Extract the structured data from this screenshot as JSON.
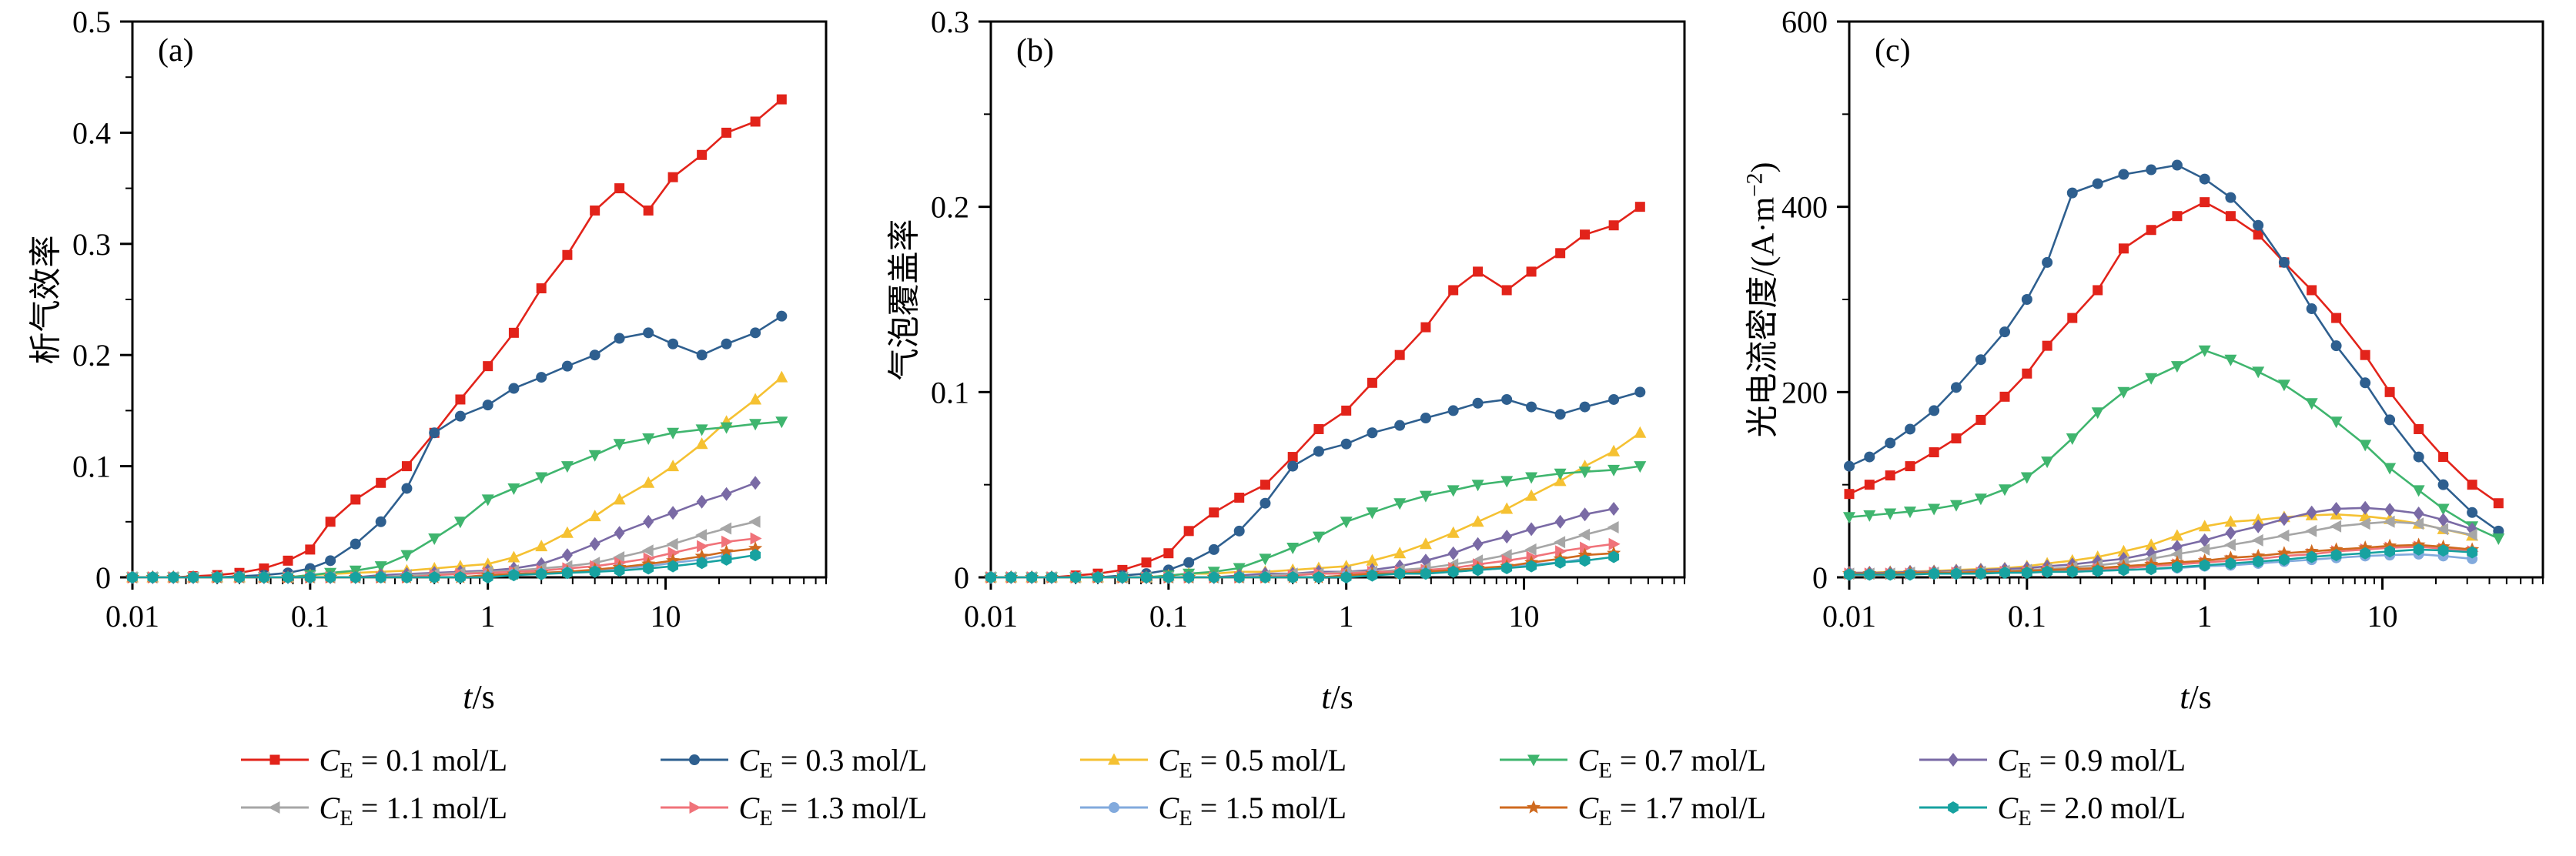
{
  "chart_data": {
    "type": "scatter",
    "x_scale": "log",
    "x_range": [
      0.01,
      80
    ],
    "x_ticks": {
      "values": [
        0.01,
        0.1,
        1,
        10
      ],
      "labels": [
        "0.01",
        "0.1",
        "1",
        "10"
      ]
    },
    "x_label": {
      "italic": "t",
      "rest": "/s"
    },
    "x": [
      0.01,
      0.013,
      0.017,
      0.022,
      0.03,
      0.04,
      0.055,
      0.075,
      0.1,
      0.13,
      0.18,
      0.25,
      0.35,
      0.5,
      0.7,
      1.0,
      1.4,
      2.0,
      2.8,
      4.0,
      5.5,
      8.0,
      11,
      16,
      22,
      32,
      45
    ],
    "series_meta": [
      {
        "label": {
          "prefix": "C",
          "sub": "E",
          "rest": " = 0.1 mol/L"
        },
        "color": "#e2231a",
        "marker": "square"
      },
      {
        "label": {
          "prefix": "C",
          "sub": "E",
          "rest": " = 0.3 mol/L"
        },
        "color": "#2e5f8f",
        "marker": "circle"
      },
      {
        "label": {
          "prefix": "C",
          "sub": "E",
          "rest": " = 0.5 mol/L"
        },
        "color": "#f5c132",
        "marker": "triangle-up"
      },
      {
        "label": {
          "prefix": "C",
          "sub": "E",
          "rest": " = 0.7 mol/L"
        },
        "color": "#3fb56e",
        "marker": "triangle-down"
      },
      {
        "label": {
          "prefix": "C",
          "sub": "E",
          "rest": " = 0.9 mol/L"
        },
        "color": "#7a6aa5",
        "marker": "diamond"
      },
      {
        "label": {
          "prefix": "C",
          "sub": "E",
          "rest": " = 1.1 mol/L"
        },
        "color": "#a6a6a6",
        "marker": "triangle-left"
      },
      {
        "label": {
          "prefix": "C",
          "sub": "E",
          "rest": " = 1.3 mol/L"
        },
        "color": "#f0737a",
        "marker": "triangle-right"
      },
      {
        "label": {
          "prefix": "C",
          "sub": "E",
          "rest": " = 1.5 mol/L"
        },
        "color": "#82aadd",
        "marker": "circle"
      },
      {
        "label": {
          "prefix": "C",
          "sub": "E",
          "rest": " = 1.7 mol/L"
        },
        "color": "#cf6a1f",
        "marker": "star"
      },
      {
        "label": {
          "prefix": "C",
          "sub": "E",
          "rest": " = 2.0 mol/L"
        },
        "color": "#17a2a0",
        "marker": "hexagon"
      }
    ],
    "panels": [
      {
        "tag": "(a)",
        "ylabel": {
          "pre": "析气效率",
          "sup": "",
          "post": ""
        },
        "ylim": [
          0,
          0.5
        ],
        "y_minor_step": 0.05,
        "y_ticks": {
          "values": [
            0,
            0.1,
            0.2,
            0.3,
            0.4,
            0.5
          ],
          "labels": [
            "0",
            "0.1",
            "0.2",
            "0.3",
            "0.4",
            "0.5"
          ]
        },
        "series_values": [
          [
            0,
            0,
            0,
            0.001,
            0.002,
            0.004,
            0.008,
            0.015,
            0.025,
            0.05,
            0.07,
            0.085,
            0.1,
            0.13,
            0.16,
            0.19,
            0.22,
            0.26,
            0.29,
            0.33,
            0.35,
            0.33,
            0.36,
            0.38,
            0.4,
            0.41,
            0.43
          ],
          [
            0,
            0,
            0,
            0,
            0,
            0.001,
            0.002,
            0.004,
            0.008,
            0.015,
            0.03,
            0.05,
            0.08,
            0.13,
            0.145,
            0.155,
            0.17,
            0.18,
            0.19,
            0.2,
            0.215,
            0.22,
            0.21,
            0.2,
            0.21,
            0.22,
            0.235
          ],
          [
            0,
            0,
            0,
            0,
            0,
            0,
            0,
            0,
            0.002,
            0.003,
            0.004,
            0.005,
            0.006,
            0.008,
            0.01,
            0.012,
            0.018,
            0.028,
            0.04,
            0.055,
            0.07,
            0.085,
            0.1,
            0.12,
            0.14,
            0.16,
            0.18
          ],
          [
            0,
            0,
            0,
            0,
            0,
            0,
            0,
            0,
            0.002,
            0.004,
            0.006,
            0.01,
            0.02,
            0.035,
            0.05,
            0.07,
            0.08,
            0.09,
            0.1,
            0.11,
            0.12,
            0.125,
            0.13,
            0.133,
            0.135,
            0.138,
            0.14
          ],
          [
            0,
            0,
            0,
            0,
            0,
            0,
            0,
            0,
            0,
            0,
            0,
            0.002,
            0.003,
            0.004,
            0.005,
            0.006,
            0.008,
            0.012,
            0.02,
            0.03,
            0.04,
            0.05,
            0.058,
            0.068,
            0.075,
            0.085,
            null
          ],
          [
            0,
            0,
            0,
            0,
            0,
            0,
            0,
            0,
            0,
            0,
            0,
            0,
            0.002,
            0.003,
            0.004,
            0.005,
            0.006,
            0.008,
            0.01,
            0.013,
            0.018,
            0.024,
            0.03,
            0.038,
            0.044,
            0.05,
            null
          ],
          [
            0,
            0,
            0,
            0,
            0,
            0,
            0,
            0,
            0,
            0,
            0,
            0,
            0,
            0.002,
            0.003,
            0.004,
            0.005,
            0.006,
            0.008,
            0.01,
            0.013,
            0.017,
            0.022,
            0.028,
            0.032,
            0.035,
            null
          ],
          [
            0,
            0,
            0,
            0,
            0,
            0,
            0,
            0,
            0,
            0,
            0,
            0,
            0,
            0,
            0,
            0.002,
            0.003,
            0.004,
            0.005,
            0.006,
            0.008,
            0.01,
            0.013,
            0.016,
            0.02,
            null,
            null
          ],
          [
            0,
            0,
            0,
            0,
            0,
            0,
            0,
            0,
            0,
            0,
            0,
            0,
            0,
            0,
            0,
            0.002,
            0.003,
            0.004,
            0.005,
            0.007,
            0.009,
            0.012,
            0.015,
            0.019,
            0.023,
            0.026,
            null
          ],
          [
            0,
            0,
            0,
            0,
            0,
            0,
            0,
            0,
            0,
            0,
            0,
            0,
            0,
            0,
            0,
            0,
            0.002,
            0.003,
            0.004,
            0.005,
            0.006,
            0.008,
            0.01,
            0.013,
            0.016,
            0.02,
            null
          ]
        ]
      },
      {
        "tag": "(b)",
        "ylabel": {
          "pre": "气泡覆盖率",
          "sup": "",
          "post": ""
        },
        "ylim": [
          0,
          0.3
        ],
        "y_minor_step": 0.05,
        "y_ticks": {
          "values": [
            0,
            0.1,
            0.2,
            0.3
          ],
          "labels": [
            "0",
            "0.1",
            "0.2",
            "0.3"
          ]
        },
        "series_values": [
          [
            0,
            0,
            0,
            0,
            0.001,
            0.002,
            0.004,
            0.008,
            0.013,
            0.025,
            0.035,
            0.043,
            0.05,
            0.065,
            0.08,
            0.09,
            0.105,
            0.12,
            0.135,
            0.155,
            0.165,
            0.155,
            0.165,
            0.175,
            0.185,
            0.19,
            0.2
          ],
          [
            0,
            0,
            0,
            0,
            0,
            0,
            0.001,
            0.002,
            0.004,
            0.008,
            0.015,
            0.025,
            0.04,
            0.06,
            0.068,
            0.072,
            0.078,
            0.082,
            0.086,
            0.09,
            0.094,
            0.096,
            0.092,
            0.088,
            0.092,
            0.096,
            0.1
          ],
          [
            0,
            0,
            0,
            0,
            0,
            0,
            0,
            0,
            0.001,
            0.002,
            0.002,
            0.003,
            0.003,
            0.004,
            0.005,
            0.006,
            0.009,
            0.013,
            0.018,
            0.024,
            0.03,
            0.037,
            0.044,
            0.052,
            0.06,
            0.068,
            0.078
          ],
          [
            0,
            0,
            0,
            0,
            0,
            0,
            0,
            0,
            0.001,
            0.002,
            0.003,
            0.005,
            0.01,
            0.016,
            0.022,
            0.03,
            0.035,
            0.04,
            0.044,
            0.047,
            0.05,
            0.052,
            0.054,
            0.056,
            0.057,
            0.058,
            0.06
          ],
          [
            0,
            0,
            0,
            0,
            0,
            0,
            0,
            0,
            0,
            0,
            0,
            0.001,
            0.002,
            0.002,
            0.003,
            0.003,
            0.004,
            0.006,
            0.009,
            0.013,
            0.018,
            0.022,
            0.026,
            0.03,
            0.034,
            0.037,
            null
          ],
          [
            0,
            0,
            0,
            0,
            0,
            0,
            0,
            0,
            0,
            0,
            0,
            0,
            0.001,
            0.002,
            0.002,
            0.003,
            0.003,
            0.004,
            0.005,
            0.007,
            0.009,
            0.012,
            0.015,
            0.019,
            0.023,
            0.027,
            null
          ],
          [
            0,
            0,
            0,
            0,
            0,
            0,
            0,
            0,
            0,
            0,
            0,
            0,
            0,
            0.001,
            0.002,
            0.002,
            0.003,
            0.003,
            0.004,
            0.005,
            0.007,
            0.009,
            0.011,
            0.014,
            0.016,
            0.018,
            null
          ],
          [
            0,
            0,
            0,
            0,
            0,
            0,
            0,
            0,
            0,
            0,
            0,
            0,
            0,
            0,
            0,
            0.001,
            0.002,
            0.002,
            0.003,
            0.003,
            0.004,
            0.005,
            0.007,
            0.008,
            0.01,
            null,
            null
          ],
          [
            0,
            0,
            0,
            0,
            0,
            0,
            0,
            0,
            0,
            0,
            0,
            0,
            0,
            0,
            0,
            0.001,
            0.002,
            0.002,
            0.003,
            0.004,
            0.005,
            0.006,
            0.008,
            0.01,
            0.012,
            0.013,
            null
          ],
          [
            0,
            0,
            0,
            0,
            0,
            0,
            0,
            0,
            0,
            0,
            0,
            0,
            0,
            0,
            0,
            0,
            0.001,
            0.002,
            0.002,
            0.003,
            0.004,
            0.005,
            0.006,
            0.008,
            0.009,
            0.011,
            null
          ]
        ]
      },
      {
        "tag": "(c)",
        "ylabel": {
          "pre": "光电流密度/(A·m",
          "sup": "−2",
          "post": ")"
        },
        "ylim": [
          0,
          600
        ],
        "y_minor_step": 100,
        "y_ticks": {
          "values": [
            0,
            200,
            400,
            600
          ],
          "labels": [
            "0",
            "200",
            "400",
            "600"
          ]
        },
        "series_values": [
          [
            90,
            100,
            110,
            120,
            135,
            150,
            170,
            195,
            220,
            250,
            280,
            310,
            355,
            375,
            390,
            405,
            390,
            370,
            340,
            310,
            280,
            240,
            200,
            160,
            130,
            100,
            80
          ],
          [
            120,
            130,
            145,
            160,
            180,
            205,
            235,
            265,
            300,
            340,
            415,
            425,
            435,
            440,
            445,
            430,
            410,
            380,
            340,
            290,
            250,
            210,
            170,
            130,
            100,
            70,
            50
          ],
          [
            5,
            5,
            6,
            6,
            7,
            8,
            9,
            10,
            12,
            15,
            18,
            22,
            28,
            35,
            45,
            55,
            60,
            62,
            65,
            67,
            68,
            66,
            63,
            58,
            52,
            45,
            null
          ],
          [
            65,
            67,
            69,
            71,
            74,
            78,
            85,
            95,
            108,
            125,
            150,
            178,
            200,
            215,
            228,
            245,
            235,
            222,
            208,
            188,
            168,
            143,
            118,
            94,
            74,
            55,
            42
          ],
          [
            5,
            5,
            5,
            6,
            6,
            7,
            8,
            9,
            10,
            12,
            14,
            17,
            20,
            26,
            33,
            40,
            48,
            55,
            63,
            70,
            74,
            75,
            73,
            69,
            62,
            52,
            null
          ],
          [
            4,
            4,
            4,
            5,
            5,
            6,
            6,
            7,
            8,
            9,
            11,
            13,
            16,
            20,
            25,
            30,
            35,
            40,
            45,
            50,
            55,
            58,
            60,
            58,
            52,
            46,
            null
          ],
          [
            4,
            4,
            4,
            4,
            5,
            5,
            5,
            6,
            6,
            7,
            8,
            9,
            10,
            12,
            14,
            16,
            18,
            20,
            23,
            25,
            28,
            30,
            32,
            33,
            31,
            28,
            null
          ],
          [
            3,
            3,
            3,
            4,
            4,
            4,
            5,
            5,
            5,
            6,
            6,
            7,
            8,
            9,
            10,
            12,
            13,
            15,
            17,
            19,
            21,
            23,
            24,
            25,
            23,
            20,
            null
          ],
          [
            4,
            4,
            4,
            5,
            5,
            5,
            6,
            6,
            7,
            8,
            9,
            10,
            12,
            14,
            16,
            18,
            21,
            23,
            26,
            28,
            30,
            32,
            34,
            35,
            33,
            30,
            null
          ],
          [
            3,
            3,
            3,
            3,
            4,
            4,
            4,
            5,
            5,
            6,
            6,
            7,
            8,
            9,
            11,
            13,
            15,
            17,
            19,
            22,
            24,
            26,
            28,
            30,
            29,
            27,
            null
          ]
        ]
      }
    ]
  }
}
